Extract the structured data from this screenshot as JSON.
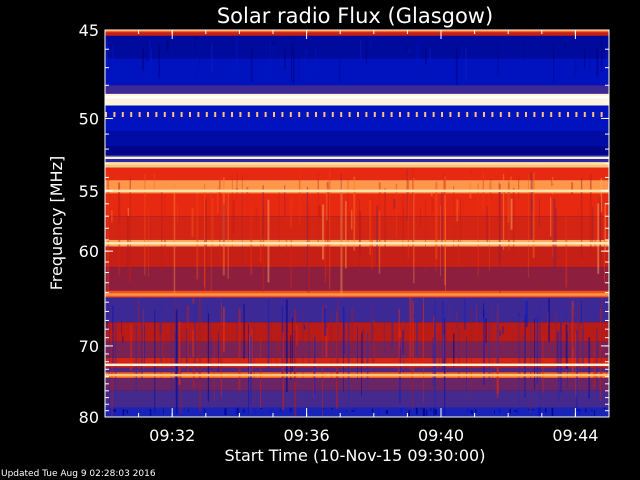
{
  "chart_data": {
    "type": "heatmap",
    "title": "Solar radio Flux (Glasgow)",
    "ylabel": "Frequency [MHz]",
    "xlabel": "Start Time (10-Nov-15 09:30:00)",
    "x_ticks": [
      "09:32",
      "09:36",
      "09:40",
      "09:44"
    ],
    "x_tick_minutes": [
      2,
      6,
      10,
      14
    ],
    "x_range_minutes": [
      0,
      15
    ],
    "y_ticks": [
      45,
      50,
      55,
      60,
      70,
      80
    ],
    "y_range_mhz": [
      45,
      80
    ],
    "y_scale": "reciprocal",
    "colormap": [
      "#00007a",
      "#0018d0",
      "#2a2aa8",
      "#5a2878",
      "#b01818",
      "#e82a10",
      "#ff6a1a",
      "#ffd890",
      "#ffffff"
    ],
    "bands": [
      {
        "from": 45.0,
        "to": 45.3,
        "level": 0.55
      },
      {
        "from": 45.3,
        "to": 46.5,
        "level": 0.05
      },
      {
        "from": 46.5,
        "to": 48.0,
        "level": 0.1
      },
      {
        "from": 48.0,
        "to": 48.5,
        "level": 0.3
      },
      {
        "from": 48.5,
        "to": 49.2,
        "level": 0.96
      },
      {
        "from": 49.2,
        "to": 50.8,
        "level": 0.1
      },
      {
        "from": 50.8,
        "to": 51.8,
        "level": 0.06
      },
      {
        "from": 51.8,
        "to": 52.4,
        "level": 0.02
      },
      {
        "from": 52.4,
        "to": 52.9,
        "level": 0.25
      },
      {
        "from": 52.9,
        "to": 53.3,
        "level": 0.85
      },
      {
        "from": 53.3,
        "to": 54.2,
        "level": 0.62
      },
      {
        "from": 54.2,
        "to": 55.2,
        "level": 0.8
      },
      {
        "from": 55.2,
        "to": 57.0,
        "level": 0.62
      },
      {
        "from": 57.0,
        "to": 59.0,
        "level": 0.58
      },
      {
        "from": 59.0,
        "to": 59.6,
        "level": 0.82
      },
      {
        "from": 59.6,
        "to": 61.5,
        "level": 0.55
      },
      {
        "from": 61.5,
        "to": 63.8,
        "level": 0.45
      },
      {
        "from": 63.8,
        "to": 64.5,
        "level": 0.7
      },
      {
        "from": 64.5,
        "to": 67.2,
        "level": 0.3
      },
      {
        "from": 67.2,
        "to": 69.5,
        "level": 0.52
      },
      {
        "from": 69.5,
        "to": 71.5,
        "level": 0.42
      },
      {
        "from": 71.5,
        "to": 72.8,
        "level": 0.58
      },
      {
        "from": 72.8,
        "to": 73.4,
        "level": 0.35
      },
      {
        "from": 73.4,
        "to": 74.2,
        "level": 0.74
      },
      {
        "from": 74.2,
        "to": 76.0,
        "level": 0.4
      },
      {
        "from": 76.0,
        "to": 78.5,
        "level": 0.32
      },
      {
        "from": 78.5,
        "to": 80.0,
        "level": 0.2
      }
    ],
    "lines": [
      {
        "freq": 45.05,
        "level": 0.75
      },
      {
        "freq": 48.7,
        "level": 1.0
      },
      {
        "freq": 52.6,
        "level": 0.95
      },
      {
        "freq": 53.0,
        "level": 0.9
      },
      {
        "freq": 55.0,
        "level": 0.9
      },
      {
        "freq": 59.3,
        "level": 0.92
      },
      {
        "freq": 64.2,
        "level": 0.8
      },
      {
        "freq": 72.4,
        "level": 0.95
      },
      {
        "freq": 73.8,
        "level": 0.85
      }
    ]
  },
  "footer_text": "Updated Tue Aug  9 02:28:03 2016"
}
